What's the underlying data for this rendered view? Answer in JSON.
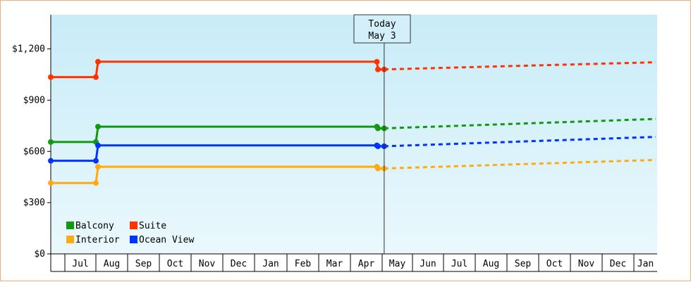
{
  "chart_data": {
    "type": "line",
    "title": "",
    "xlabel": "",
    "ylabel": "",
    "ylim": [
      0,
      1400
    ],
    "y_ticks": [
      0,
      300,
      600,
      900,
      1200
    ],
    "y_tick_labels": [
      "$0",
      "$300",
      "$600",
      "$900",
      "$1,200"
    ],
    "month_labels": [
      "Jul",
      "Aug",
      "Sep",
      "Oct",
      "Nov",
      "Dec",
      "Jan",
      "Feb",
      "Mar",
      "Apr",
      "May",
      "Jun",
      "Jul",
      "Aug",
      "Sep",
      "Oct",
      "Nov",
      "Dec",
      "Jan"
    ],
    "today_marker": {
      "line1": "Today",
      "line2": "May 3",
      "date": "May 3"
    },
    "background_gradient": [
      "#c8ecf8",
      "#eaf8fc"
    ],
    "legend_position": "bottom-left",
    "series": [
      {
        "name": "Balcony",
        "color": "#119911",
        "history": [
          [
            "Jun 1",
            655
          ],
          [
            "Aug 1",
            655
          ],
          [
            "Aug 3",
            745
          ],
          [
            "Apr 26",
            745
          ],
          [
            "Apr 27",
            735
          ],
          [
            "May 3",
            735
          ]
        ],
        "forecast": [
          [
            "May 3",
            735
          ],
          [
            "Jan 31",
            790
          ]
        ]
      },
      {
        "name": "Suite",
        "color": "#ff3300",
        "history": [
          [
            "Jun 1",
            1035
          ],
          [
            "Aug 1",
            1035
          ],
          [
            "Aug 3",
            1125
          ],
          [
            "Apr 26",
            1125
          ],
          [
            "Apr 27",
            1080
          ],
          [
            "May 3",
            1080
          ]
        ],
        "forecast": [
          [
            "May 3",
            1080
          ],
          [
            "Jan 31",
            1122
          ]
        ]
      },
      {
        "name": "Interior",
        "color": "#ffaa11",
        "history": [
          [
            "Jun 1",
            415
          ],
          [
            "Aug 1",
            415
          ],
          [
            "Aug 3",
            510
          ],
          [
            "Apr 26",
            510
          ],
          [
            "Apr 27",
            500
          ],
          [
            "May 3",
            500
          ]
        ],
        "forecast": [
          [
            "May 3",
            500
          ],
          [
            "Jan 31",
            550
          ]
        ]
      },
      {
        "name": "Ocean View",
        "color": "#0033ff",
        "history": [
          [
            "Jun 1",
            545
          ],
          [
            "Aug 1",
            545
          ],
          [
            "Aug 3",
            635
          ],
          [
            "Apr 26",
            635
          ],
          [
            "Apr 27",
            630
          ],
          [
            "May 3",
            630
          ]
        ],
        "forecast": [
          [
            "May 3",
            630
          ],
          [
            "Jan 31",
            685
          ]
        ]
      }
    ]
  }
}
